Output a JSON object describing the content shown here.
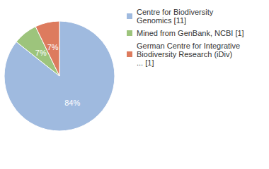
{
  "chart_data": {
    "type": "pie",
    "categories": [
      "Centre for Biodiversity\nGenomics [11]",
      "Mined from GenBank, NCBI [1]",
      "German Centre for Integrative\nBiodiversity Research (iDiv)\n... [1]"
    ],
    "values": [
      84,
      7,
      7
    ],
    "value_labels": [
      "84%",
      "7%",
      "7%"
    ],
    "colors": [
      "#9fbadf",
      "#9dc47c",
      "#dd7b5e"
    ],
    "data_labels": true,
    "legend": "top-right"
  }
}
